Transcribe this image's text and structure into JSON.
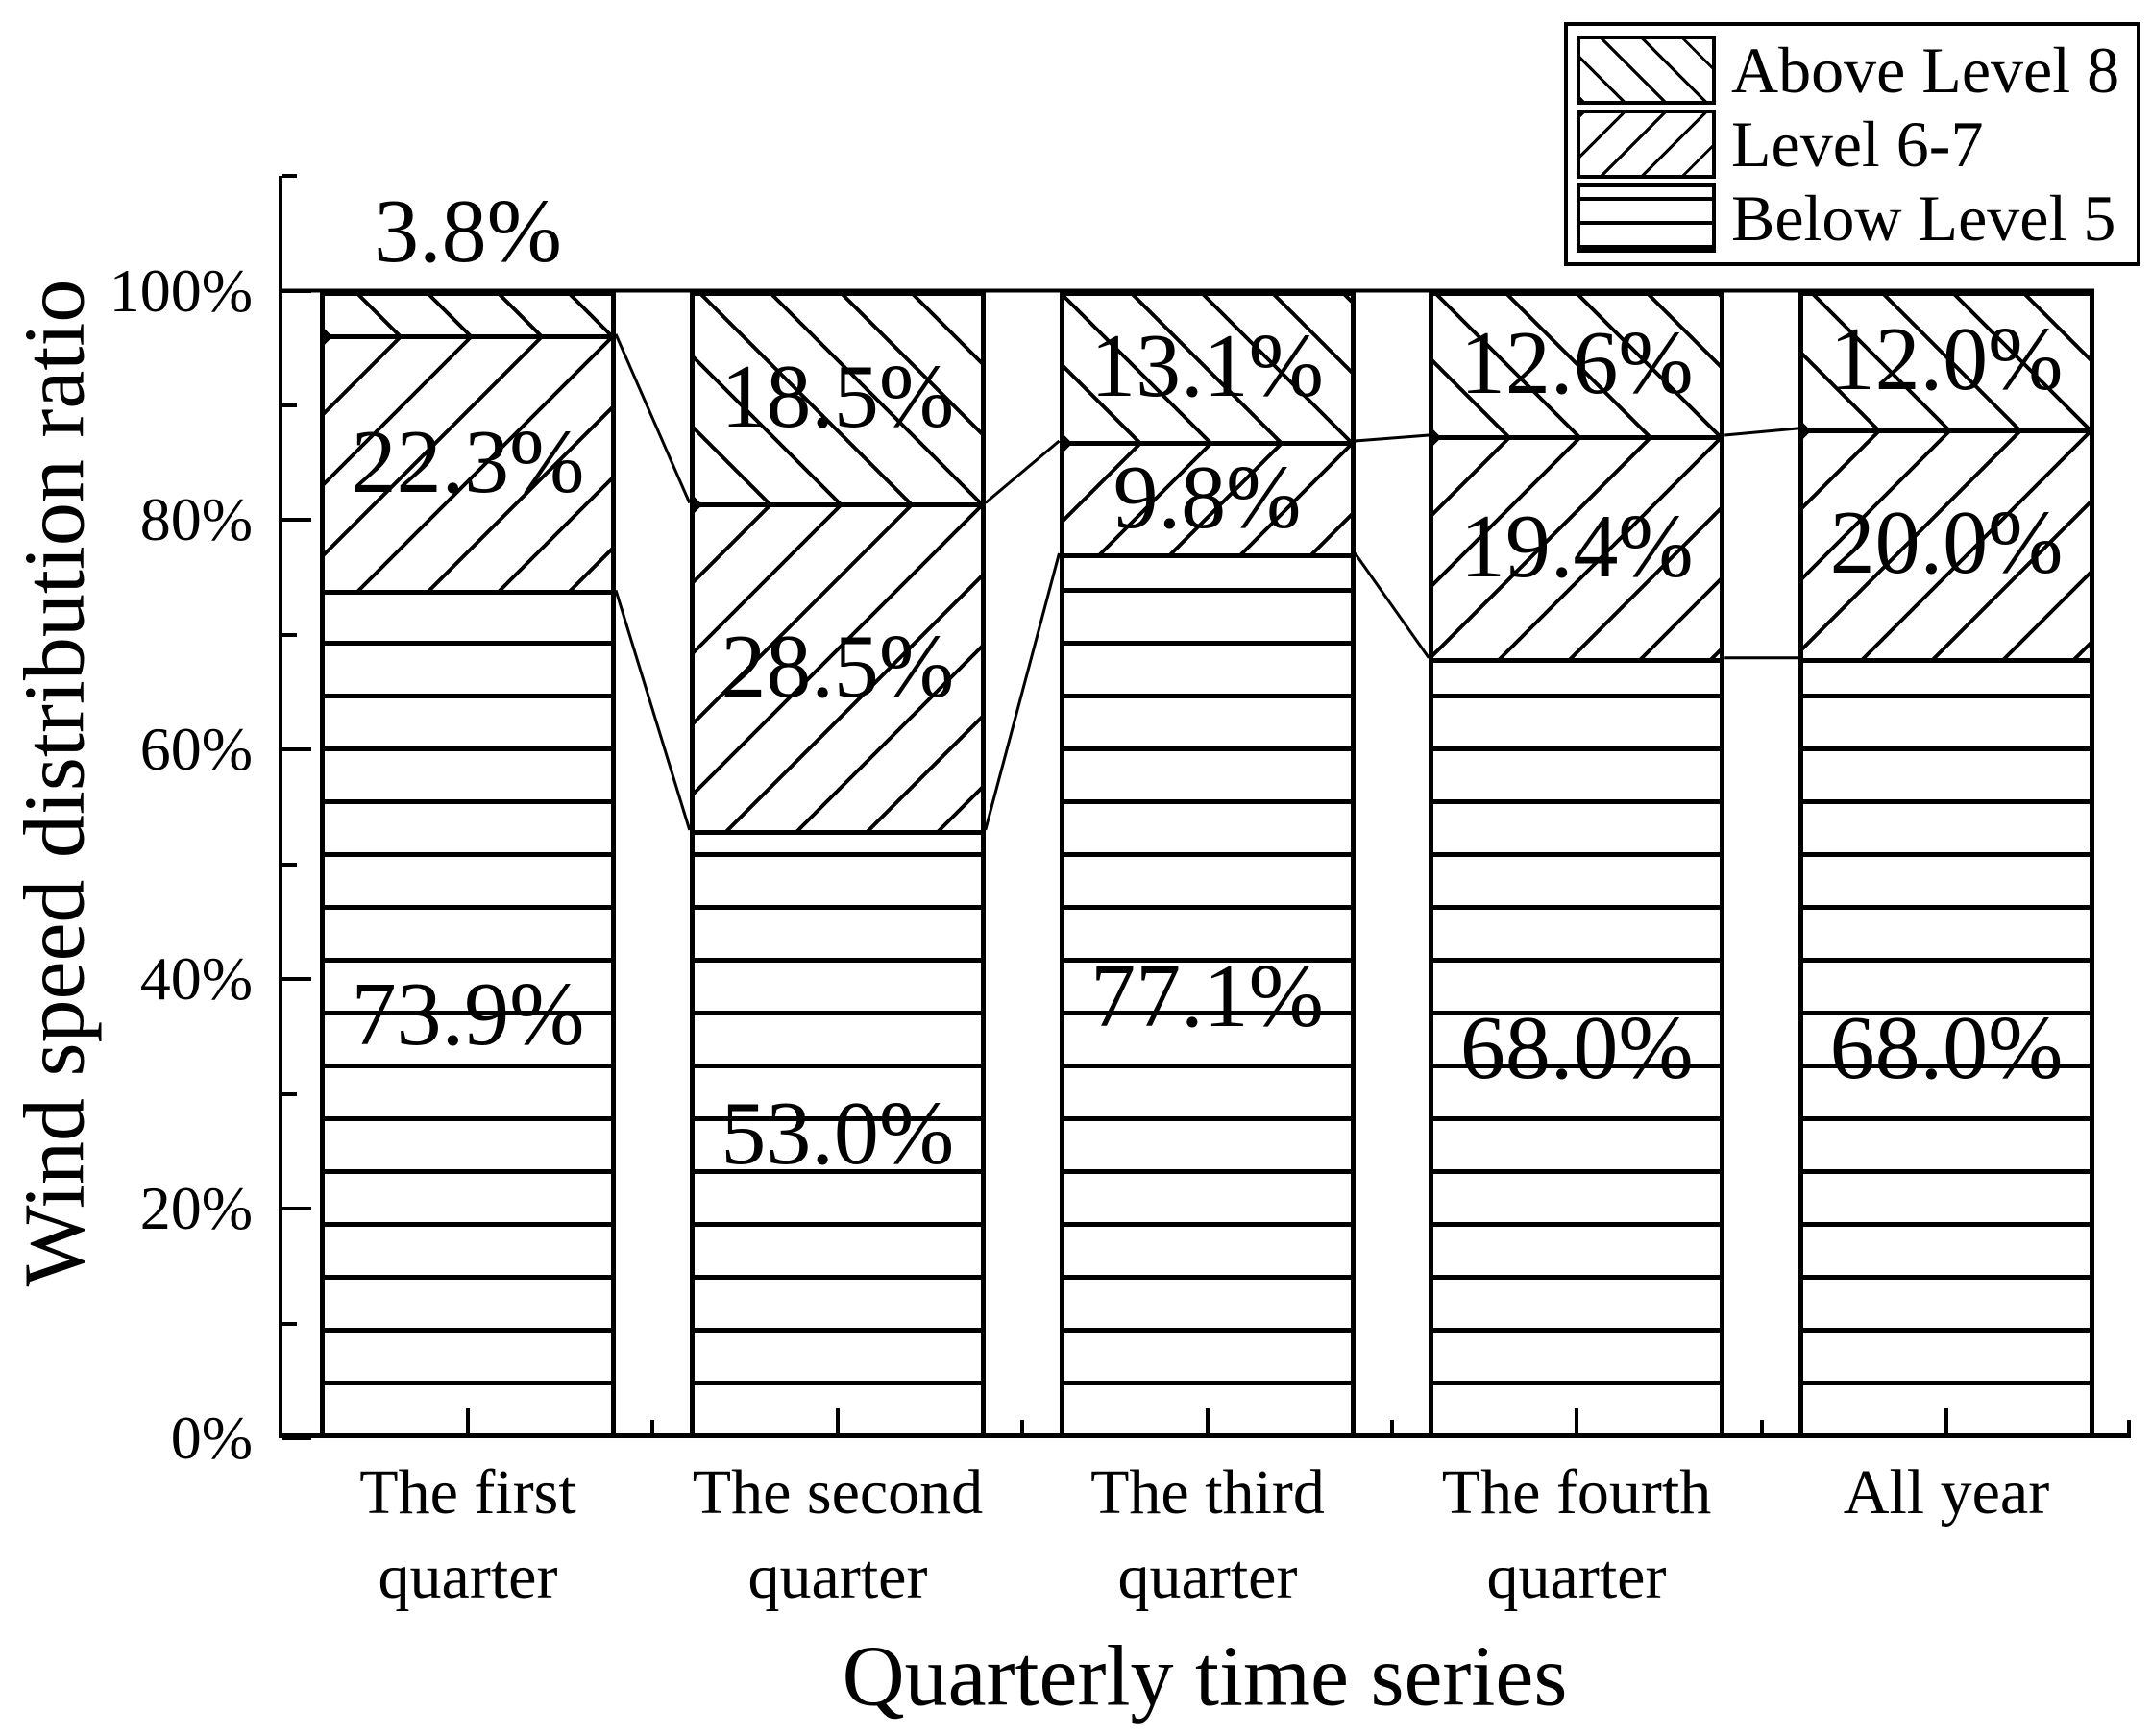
{
  "figure": {
    "y_axis_title": "Wind speed distribution ratio",
    "x_axis_title": "Quarterly time series"
  },
  "legend": {
    "position": "top-right",
    "items": [
      {
        "label": "Above Level 8",
        "pattern": "diag-back"
      },
      {
        "label": "Level 6-7",
        "pattern": "diag-fwd"
      },
      {
        "label": "Below Level 5",
        "pattern": "horiz"
      }
    ]
  },
  "chart_data": {
    "type": "bar",
    "stacked": true,
    "title": "",
    "xlabel": "Quarterly time series",
    "ylabel": "Wind speed distribution ratio",
    "ylim": [
      0,
      110
    ],
    "grid": false,
    "categories": [
      "The first quarter",
      "The second quarter",
      "The third quarter",
      "The fourth quarter",
      "All year"
    ],
    "category_lines": [
      [
        "The first",
        "quarter"
      ],
      [
        "The second",
        "quarter"
      ],
      [
        "The third",
        "quarter"
      ],
      [
        "The fourth",
        "quarter"
      ],
      [
        "All year"
      ]
    ],
    "y_tick_labels": [
      "0%",
      "20%",
      "40%",
      "60%",
      "80%",
      "100%"
    ],
    "series": [
      {
        "name": "Below Level 5",
        "pattern": "horiz",
        "values": [
          73.9,
          53.0,
          77.1,
          68.0,
          68.0
        ],
        "labels": [
          "73.9%",
          "53.0%",
          "77.1%",
          "68.0%",
          "68.0%"
        ]
      },
      {
        "name": "Level 6-7",
        "pattern": "diag-fwd",
        "values": [
          22.3,
          28.5,
          9.8,
          19.4,
          20.0
        ],
        "labels": [
          "22.3%",
          "28.5%",
          "9.8%",
          "19.4%",
          "20.0%"
        ]
      },
      {
        "name": "Above Level 8",
        "pattern": "diag-back",
        "values": [
          3.8,
          18.5,
          13.1,
          12.6,
          12.0
        ],
        "labels": [
          "3.8%",
          "18.5%",
          "13.1%",
          "12.6%",
          "12.0%"
        ]
      }
    ],
    "colors": {
      "foreground": "#000000",
      "background": "#ffffff"
    }
  }
}
